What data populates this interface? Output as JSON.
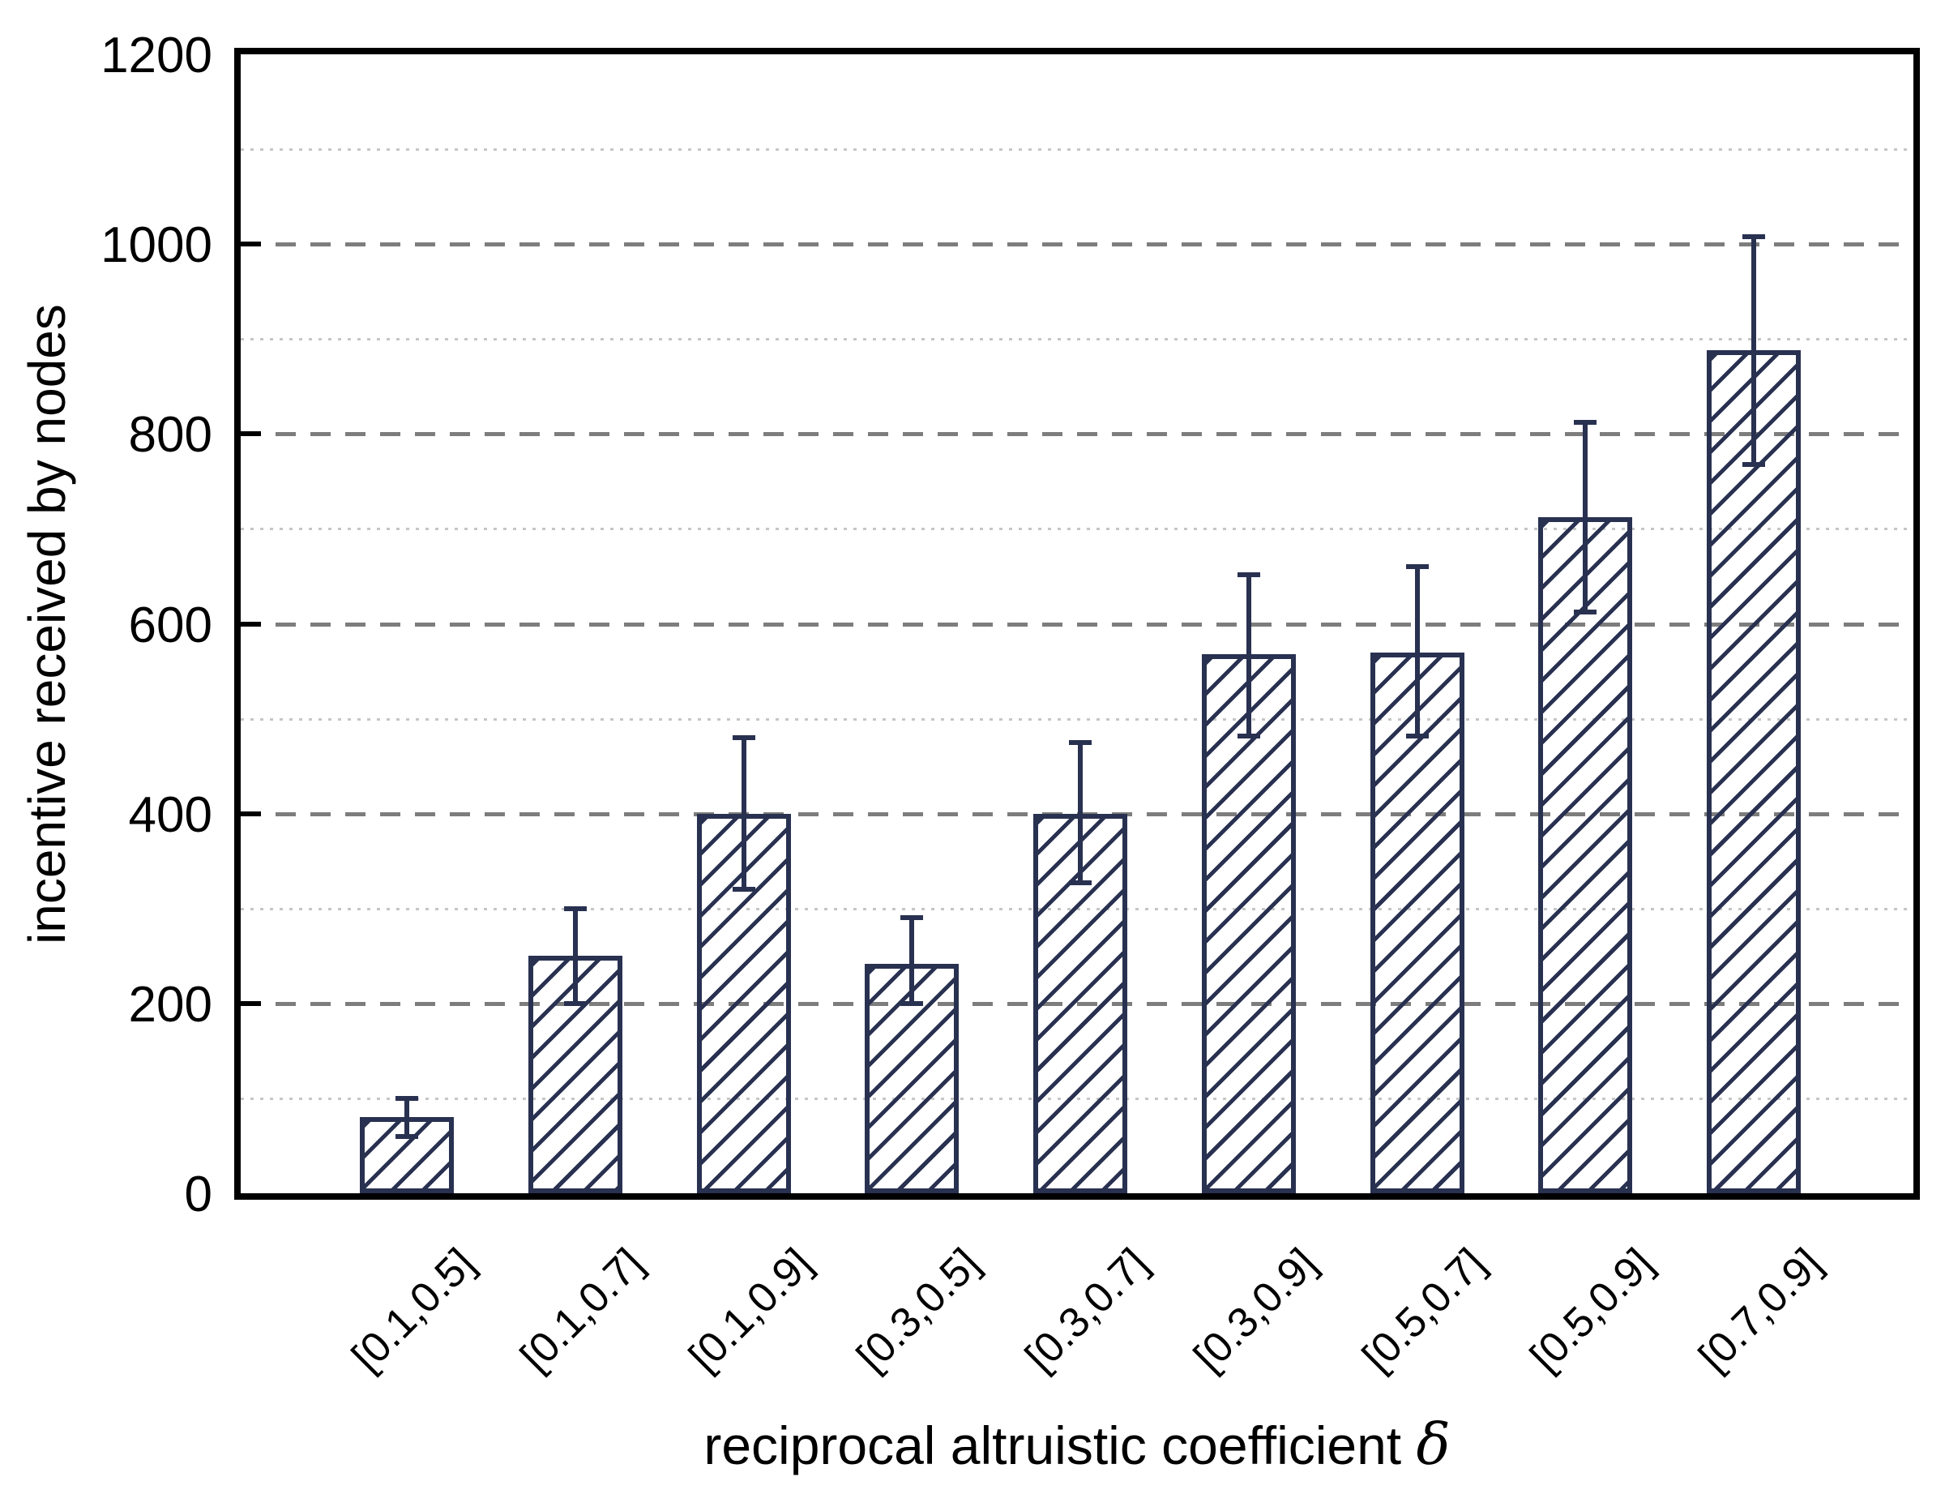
{
  "chart_data": {
    "type": "bar",
    "title": "",
    "xlabel": "reciprocal altruistic coefficient δ",
    "xlabel_text": "reciprocal altruistic coefficient ",
    "xlabel_symbol": "δ",
    "ylabel": "incentive received by nodes",
    "categories": [
      "[0.1,0.5]",
      "[0.1,0.7]",
      "[0.1,0.9]",
      "[0.3,0.5]",
      "[0.3,0.7]",
      "[0.3,0.9]",
      "[0.5,0.7]",
      "[0.5,0.9]",
      "[0.7,0.9]"
    ],
    "values": [
      80,
      250,
      400,
      242,
      400,
      568,
      570,
      712,
      888
    ],
    "error_plus": [
      20,
      50,
      80,
      48,
      75,
      84,
      90,
      100,
      120
    ],
    "error_minus": [
      20,
      50,
      80,
      42,
      73,
      86,
      88,
      100,
      120
    ],
    "ylim": [
      0,
      1200
    ],
    "ytick_values": [
      0,
      200,
      400,
      600,
      800,
      1000,
      1200
    ],
    "ytick_labels": [
      "0",
      "200",
      "400",
      "600",
      "800",
      "1000",
      "1200"
    ],
    "major_gridlines": [
      200,
      400,
      600,
      800,
      1000
    ],
    "minor_gridlines": [
      100,
      300,
      500,
      700,
      900,
      1100
    ],
    "grid": "horizontal only: major dashed, minor dotted",
    "legend": "none",
    "bar_style": {
      "fill": "transparent",
      "hatch": "diagonal-forward-slash",
      "line_color": "#293151",
      "error_bar_color": "#293151"
    },
    "colors": {
      "axis": "#000000",
      "major_grid": "#7d7d7d",
      "minor_grid": "#c6c6c6",
      "text": "#000000",
      "background": "#ffffff"
    }
  }
}
